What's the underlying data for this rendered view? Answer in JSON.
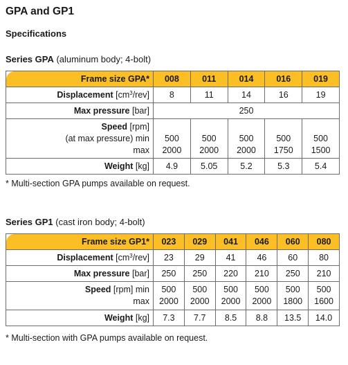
{
  "title": "GPA and GP1",
  "subtitle": "Specifications",
  "gpa": {
    "series_name": "Series GPA",
    "series_desc": " (aluminum body; 4-bolt)",
    "frame_label_bold": "Frame size GPA*",
    "codes": [
      "008",
      "011",
      "014",
      "016",
      "019"
    ],
    "displacement_label": "Displacement",
    "displacement_unit_pre": " [cm",
    "displacement_unit_sup": "3",
    "displacement_unit_post": "/rev]",
    "displacement": [
      "8",
      "11",
      "14",
      "16",
      "19"
    ],
    "pressure_label": "Max pressure",
    "pressure_unit": " [bar]",
    "pressure_value": "250",
    "speed_label": "Speed",
    "speed_unit": " [rpm]",
    "speed_min_label": "(at max pressure) min",
    "speed_max_label": "max",
    "speed_min": [
      "500",
      "500",
      "500",
      "500",
      "500"
    ],
    "speed_max": [
      "2000",
      "2000",
      "2000",
      "1750",
      "1500"
    ],
    "weight_label": "Weight",
    "weight_unit": " [kg]",
    "weight": [
      "4.9",
      "5.05",
      "5.2",
      "5.3",
      "5.4"
    ],
    "note": "* Multi-section GPA pumps available on request."
  },
  "gp1": {
    "series_name": "Series GP1",
    "series_desc": " (cast iron body; 4-bolt)",
    "frame_label_bold": "Frame size GP1*",
    "codes": [
      "023",
      "029",
      "041",
      "046",
      "060",
      "080"
    ],
    "displacement_label": "Displacement",
    "displacement_unit_pre": " [cm",
    "displacement_unit_sup": "3",
    "displacement_unit_post": "/rev]",
    "displacement": [
      "23",
      "29",
      "41",
      "46",
      "60",
      "80"
    ],
    "pressure_label": "Max pressure",
    "pressure_unit": " [bar]",
    "pressure": [
      "250",
      "250",
      "220",
      "210",
      "250",
      "210"
    ],
    "speed_label": "Speed",
    "speed_unit": " [rpm] min",
    "speed_max_label": "max",
    "speed_min": [
      "500",
      "500",
      "500",
      "500",
      "500",
      "500"
    ],
    "speed_max": [
      "2000",
      "2000",
      "2000",
      "2000",
      "1800",
      "1600"
    ],
    "weight_label": "Weight",
    "weight_unit": " [kg]",
    "weight": [
      "7.3",
      "7.7",
      "8.5",
      "8.8",
      "13.5",
      "14.0"
    ],
    "note": "* Multi-section with GPA pumps available on request."
  }
}
